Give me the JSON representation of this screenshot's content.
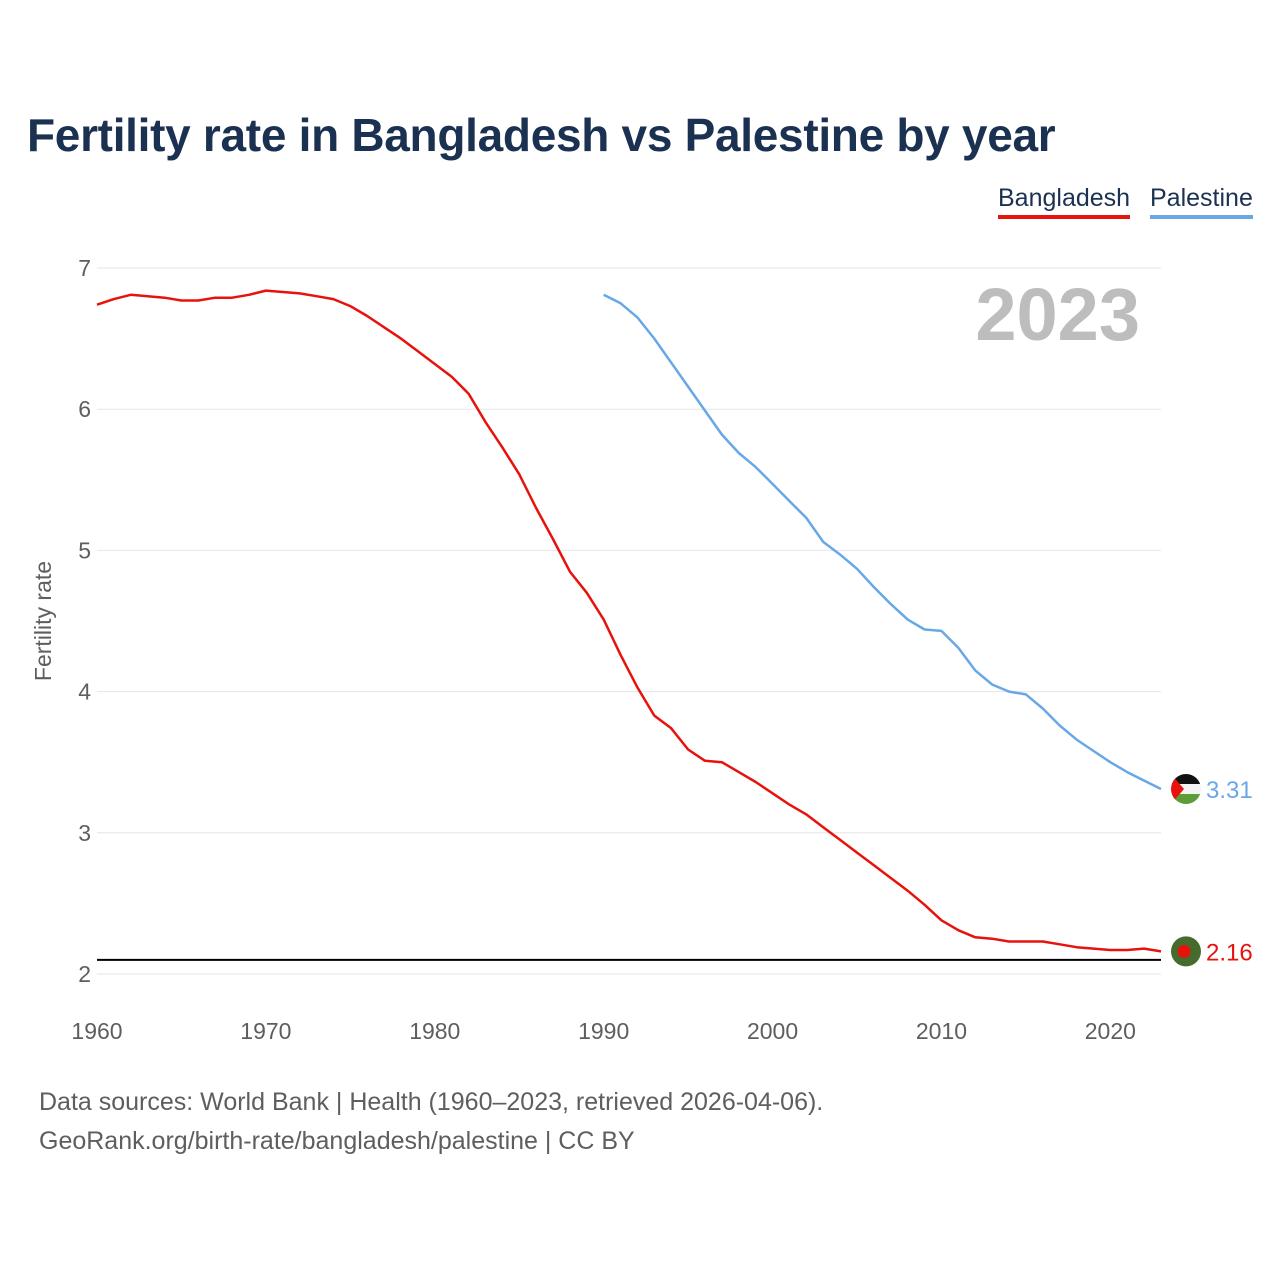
{
  "chart_data": {
    "type": "line",
    "title": "Fertility rate in Bangladesh vs Palestine by year",
    "ylabel": "Fertility rate",
    "xlabel": "",
    "xlim": [
      1960,
      2023
    ],
    "ylim": [
      2,
      7
    ],
    "x_ticks": [
      1960,
      1970,
      1980,
      1990,
      2000,
      2010,
      2020
    ],
    "y_ticks": [
      2,
      3,
      4,
      5,
      6,
      7
    ],
    "year_label": "2023",
    "reference_line": 2.1,
    "grid": true,
    "legend_position": "top-right",
    "series": [
      {
        "name": "Bangladesh",
        "color": "#e8120c",
        "end_label": "2.16",
        "flag_icon": "bangladesh-flag-icon",
        "x": [
          1960,
          1961,
          1962,
          1963,
          1964,
          1965,
          1966,
          1967,
          1968,
          1969,
          1970,
          1971,
          1972,
          1973,
          1974,
          1975,
          1976,
          1977,
          1978,
          1979,
          1980,
          1981,
          1982,
          1983,
          1984,
          1985,
          1986,
          1987,
          1988,
          1989,
          1990,
          1991,
          1992,
          1993,
          1994,
          1995,
          1996,
          1997,
          1998,
          1999,
          2000,
          2001,
          2002,
          2003,
          2004,
          2005,
          2006,
          2007,
          2008,
          2009,
          2010,
          2011,
          2012,
          2013,
          2014,
          2015,
          2016,
          2017,
          2018,
          2019,
          2020,
          2021,
          2022,
          2023
        ],
        "values": [
          6.74,
          6.78,
          6.81,
          6.8,
          6.79,
          6.77,
          6.77,
          6.79,
          6.79,
          6.81,
          6.84,
          6.83,
          6.82,
          6.8,
          6.78,
          6.73,
          6.66,
          6.58,
          6.5,
          6.41,
          6.32,
          6.23,
          6.11,
          5.91,
          5.73,
          5.54,
          5.3,
          5.08,
          4.85,
          4.7,
          4.51,
          4.26,
          4.03,
          3.83,
          3.74,
          3.59,
          3.51,
          3.5,
          3.43,
          3.36,
          3.28,
          3.2,
          3.13,
          3.04,
          2.95,
          2.86,
          2.77,
          2.68,
          2.59,
          2.49,
          2.38,
          2.31,
          2.26,
          2.25,
          2.23,
          2.23,
          2.23,
          2.21,
          2.19,
          2.18,
          2.17,
          2.17,
          2.18,
          2.16
        ]
      },
      {
        "name": "Palestine",
        "color": "#68a8e6",
        "end_label": "3.31",
        "flag_icon": "palestine-flag-icon",
        "x": [
          1990,
          1991,
          1992,
          1993,
          1994,
          1995,
          1996,
          1997,
          1998,
          1999,
          2000,
          2001,
          2002,
          2003,
          2004,
          2005,
          2006,
          2007,
          2008,
          2009,
          2010,
          2011,
          2012,
          2013,
          2014,
          2015,
          2016,
          2017,
          2018,
          2019,
          2020,
          2021,
          2022,
          2023
        ],
        "values": [
          6.81,
          6.75,
          6.65,
          6.5,
          6.33,
          6.16,
          5.99,
          5.82,
          5.69,
          5.59,
          5.47,
          5.35,
          5.23,
          5.06,
          4.97,
          4.87,
          4.74,
          4.62,
          4.51,
          4.44,
          4.43,
          4.31,
          4.15,
          4.05,
          4.0,
          3.98,
          3.88,
          3.76,
          3.66,
          3.58,
          3.5,
          3.43,
          3.37,
          3.31
        ]
      }
    ]
  },
  "sources": {
    "line1": "Data sources: World Bank | Health (1960–2023, retrieved 2026-04-06).",
    "line2": "GeoRank.org/birth-rate/bangladesh/palestine | CC BY"
  }
}
